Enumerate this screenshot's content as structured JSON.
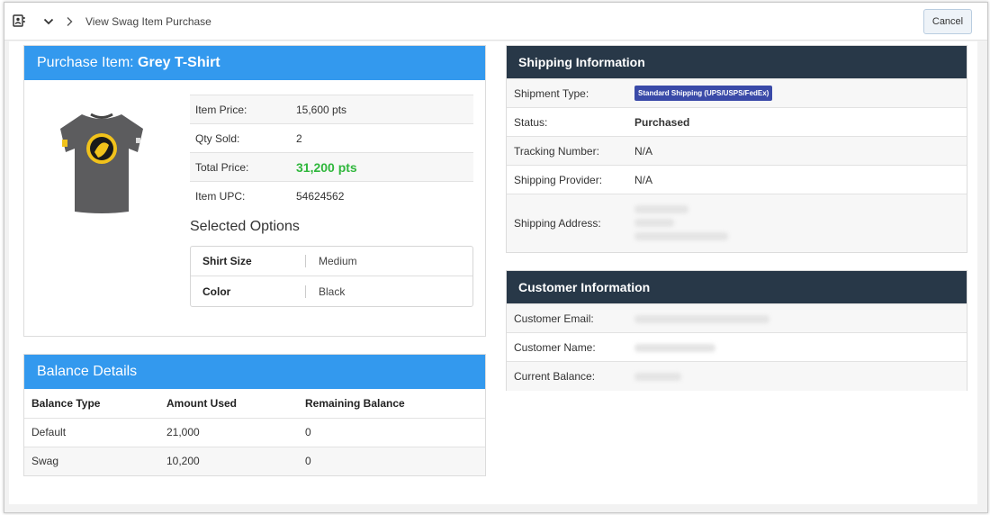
{
  "topbar": {
    "breadcrumb": "View Swag Item Purchase",
    "cancel_label": "Cancel"
  },
  "purchase": {
    "heading_prefix": "Purchase Item: ",
    "item_name": "Grey T-Shirt",
    "details": [
      {
        "label": "Item Price:",
        "value": "15,600 pts"
      },
      {
        "label": "Qty Sold:",
        "value": "2"
      },
      {
        "label": "Total Price:",
        "value": "31,200 pts"
      },
      {
        "label": "Item UPC:",
        "value": "54624562"
      }
    ],
    "options_title": "Selected Options",
    "options": [
      {
        "label": "Shirt Size",
        "value": "Medium"
      },
      {
        "label": "Color",
        "value": "Black"
      }
    ]
  },
  "balance": {
    "heading": "Balance Details",
    "columns": [
      "Balance Type",
      "Amount Used",
      "Remaining Balance"
    ],
    "rows": [
      [
        "Default",
        "21,000",
        "0"
      ],
      [
        "Swag",
        "10,200",
        "0"
      ]
    ]
  },
  "shipping": {
    "heading": "Shipping Information",
    "shipment_type_label": "Shipment Type:",
    "shipment_type_value": "Standard Shipping (UPS/USPS/FedEx)",
    "status_label": "Status:",
    "status_value": "Purchased",
    "tracking_label": "Tracking Number:",
    "tracking_value": "N/A",
    "provider_label": "Shipping Provider:",
    "provider_value": "N/A",
    "address_label": "Shipping Address:"
  },
  "customer": {
    "heading": "Customer Information",
    "email_label": "Customer Email:",
    "name_label": "Customer Name:",
    "balance_label": "Current Balance:"
  },
  "colors": {
    "blue_header": "#3399ee",
    "dark_header": "#283848",
    "total_green": "#2fb73c",
    "badge": "#3a4aa8"
  },
  "icons": [
    "contact-card-icon",
    "chevron-down-icon",
    "chevron-right-icon",
    "tshirt-image"
  ]
}
